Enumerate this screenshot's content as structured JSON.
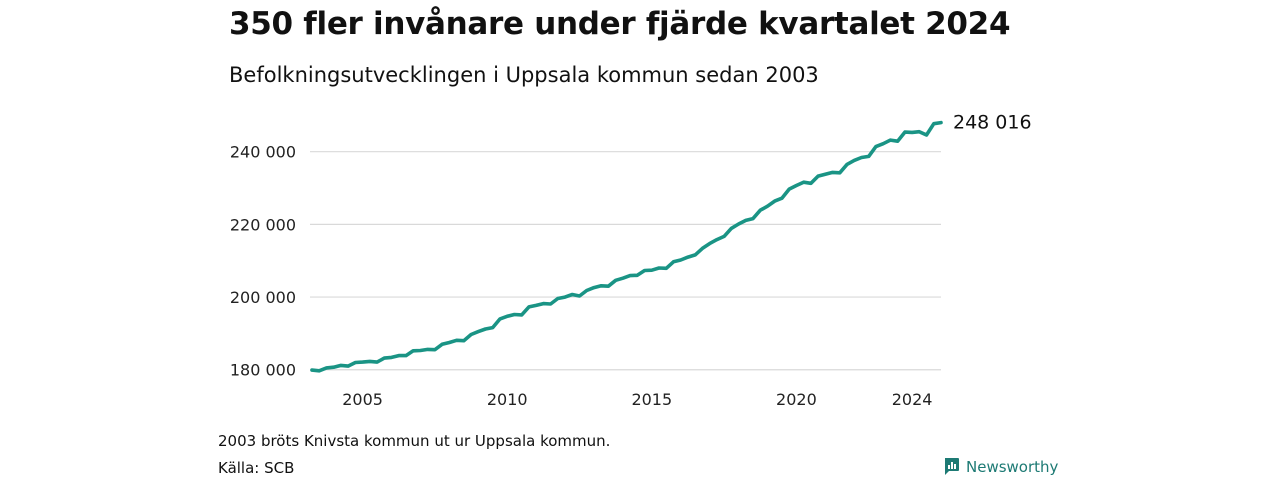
{
  "header": {
    "title": "350 fler invånare under fjärde kvartalet 2024",
    "subtitle": "Befolkningsutvecklingen i Uppsala kommun sedan 2003"
  },
  "footer": {
    "note": "2003 bröts Knivsta kommun ut ur Uppsala kommun.",
    "source": "Källa: SCB",
    "brand": "Newsworthy"
  },
  "colors": {
    "line": "#1a9485",
    "grid": "#d9d9d9",
    "brand": "#1d7a74"
  },
  "chart_data": {
    "type": "line",
    "title": "350 fler invånare under fjärde kvartalet 2024",
    "subtitle": "Befolkningsutvecklingen i Uppsala kommun sedan 2003",
    "xlabel": "",
    "ylabel": "",
    "xlim": [
      2003.25,
      2025.0
    ],
    "ylim": [
      178000,
      249000
    ],
    "x_ticks": [
      2005,
      2010,
      2015,
      2020,
      2024
    ],
    "x_tick_labels": [
      "2005",
      "2010",
      "2015",
      "2020",
      "2024"
    ],
    "y_ticks": [
      180000,
      200000,
      220000,
      240000
    ],
    "y_tick_labels": [
      "180 000",
      "200 000",
      "220 000",
      "240 000"
    ],
    "grid": "horizontal",
    "end_label": "248 016",
    "series": [
      {
        "x": [
          2003.25,
          2003.5,
          2003.75,
          2004.0,
          2004.25,
          2004.5,
          2004.75,
          2005.0,
          2005.25,
          2005.5,
          2005.75,
          2006.0,
          2006.25,
          2006.5,
          2006.75,
          2007.0,
          2007.25,
          2007.5,
          2007.75,
          2008.0,
          2008.25,
          2008.5,
          2008.75,
          2009.0,
          2009.25,
          2009.5,
          2009.75,
          2010.0,
          2010.25,
          2010.5,
          2010.75,
          2011.0,
          2011.25,
          2011.5,
          2011.75,
          2012.0,
          2012.25,
          2012.5,
          2012.75,
          2013.0,
          2013.25,
          2013.5,
          2013.75,
          2014.0,
          2014.25,
          2014.5,
          2014.75,
          2015.0,
          2015.25,
          2015.5,
          2015.75,
          2016.0,
          2016.25,
          2016.5,
          2016.75,
          2017.0,
          2017.25,
          2017.5,
          2017.75,
          2018.0,
          2018.25,
          2018.5,
          2018.75,
          2019.0,
          2019.25,
          2019.5,
          2019.75,
          2020.0,
          2020.25,
          2020.5,
          2020.75,
          2021.0,
          2021.25,
          2021.5,
          2021.75,
          2022.0,
          2022.25,
          2022.5,
          2022.75,
          2023.0,
          2023.25,
          2023.5,
          2023.75,
          2024.0,
          2024.25,
          2024.5,
          2024.75,
          2025.0
        ],
        "y": [
          179900,
          179700,
          180500,
          180700,
          181200,
          181000,
          182000,
          182100,
          182300,
          182100,
          183200,
          183400,
          183900,
          183900,
          185200,
          185300,
          185600,
          185500,
          187000,
          187500,
          188100,
          188000,
          189700,
          190500,
          191200,
          191600,
          194000,
          194700,
          195200,
          195100,
          197300,
          197700,
          198200,
          198100,
          199600,
          200000,
          200700,
          200300,
          201800,
          202600,
          203100,
          203000,
          204600,
          205200,
          205900,
          206000,
          207300,
          207400,
          208000,
          207900,
          209700,
          210200,
          211000,
          211600,
          213400,
          214700,
          215800,
          216700,
          218900,
          220100,
          221100,
          221600,
          223900,
          225000,
          226400,
          227200,
          229700,
          230700,
          231600,
          231300,
          233300,
          233800,
          234300,
          234200,
          236500,
          237600,
          238400,
          238700,
          241400,
          242200,
          243200,
          242900,
          245400,
          245300,
          245500,
          244600,
          247700,
          248016
        ]
      }
    ]
  }
}
